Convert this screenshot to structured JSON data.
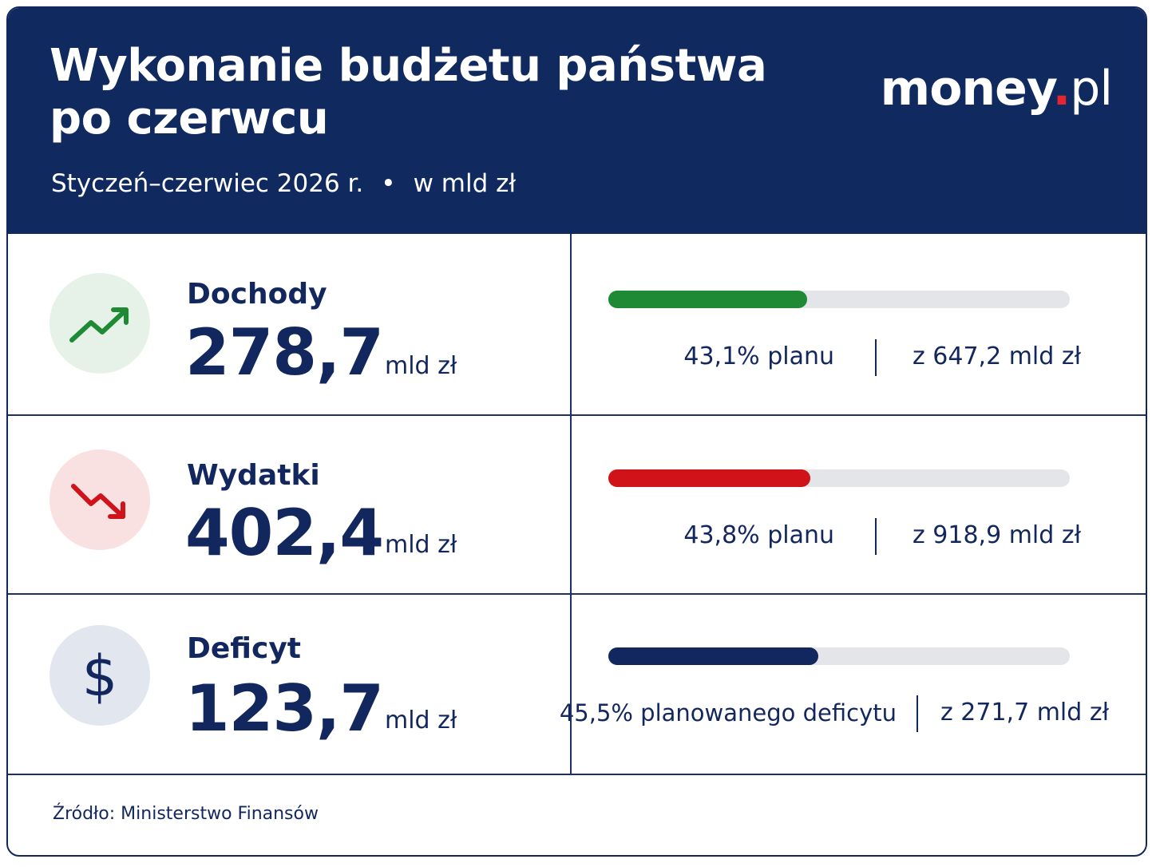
{
  "header": {
    "title_line1": "Wykonanie budżetu państwa",
    "title_line2": "po czerwcu",
    "period": "Styczeń–czerwiec 2026 r.",
    "separator": "•",
    "units": "w mld zł",
    "logo_brand": "money",
    "logo_dot": ".",
    "logo_tld": "pl"
  },
  "rows": [
    {
      "icon": "trend-up-icon",
      "label": "Dochody",
      "value": "278,7",
      "unit": "mld zł",
      "percent_text": "43,1% planu",
      "percent": 43.1,
      "of_text": "z 647,2 mld zł",
      "color": "#1e8a36",
      "icon_bg": "#e6f2e7"
    },
    {
      "icon": "trend-down-icon",
      "label": "Wydatki",
      "value": "402,4",
      "unit": "mld zł",
      "percent_text": "43,8% planu",
      "percent": 43.8,
      "of_text": "z 918,9 mld zł",
      "color": "#d01219",
      "icon_bg": "#f9e1e2"
    },
    {
      "icon": "dollar-icon",
      "label": "Deficyt",
      "value": "123,7",
      "unit": "mld zł",
      "percent_text": "45,5% planowanego deficytu",
      "percent": 45.5,
      "of_text": "z 271,7 mld zł",
      "color": "#13275f",
      "icon_bg": "#e2e6ef"
    }
  ],
  "footer": {
    "source": "Źródło: Ministerstwo Finansów"
  }
}
